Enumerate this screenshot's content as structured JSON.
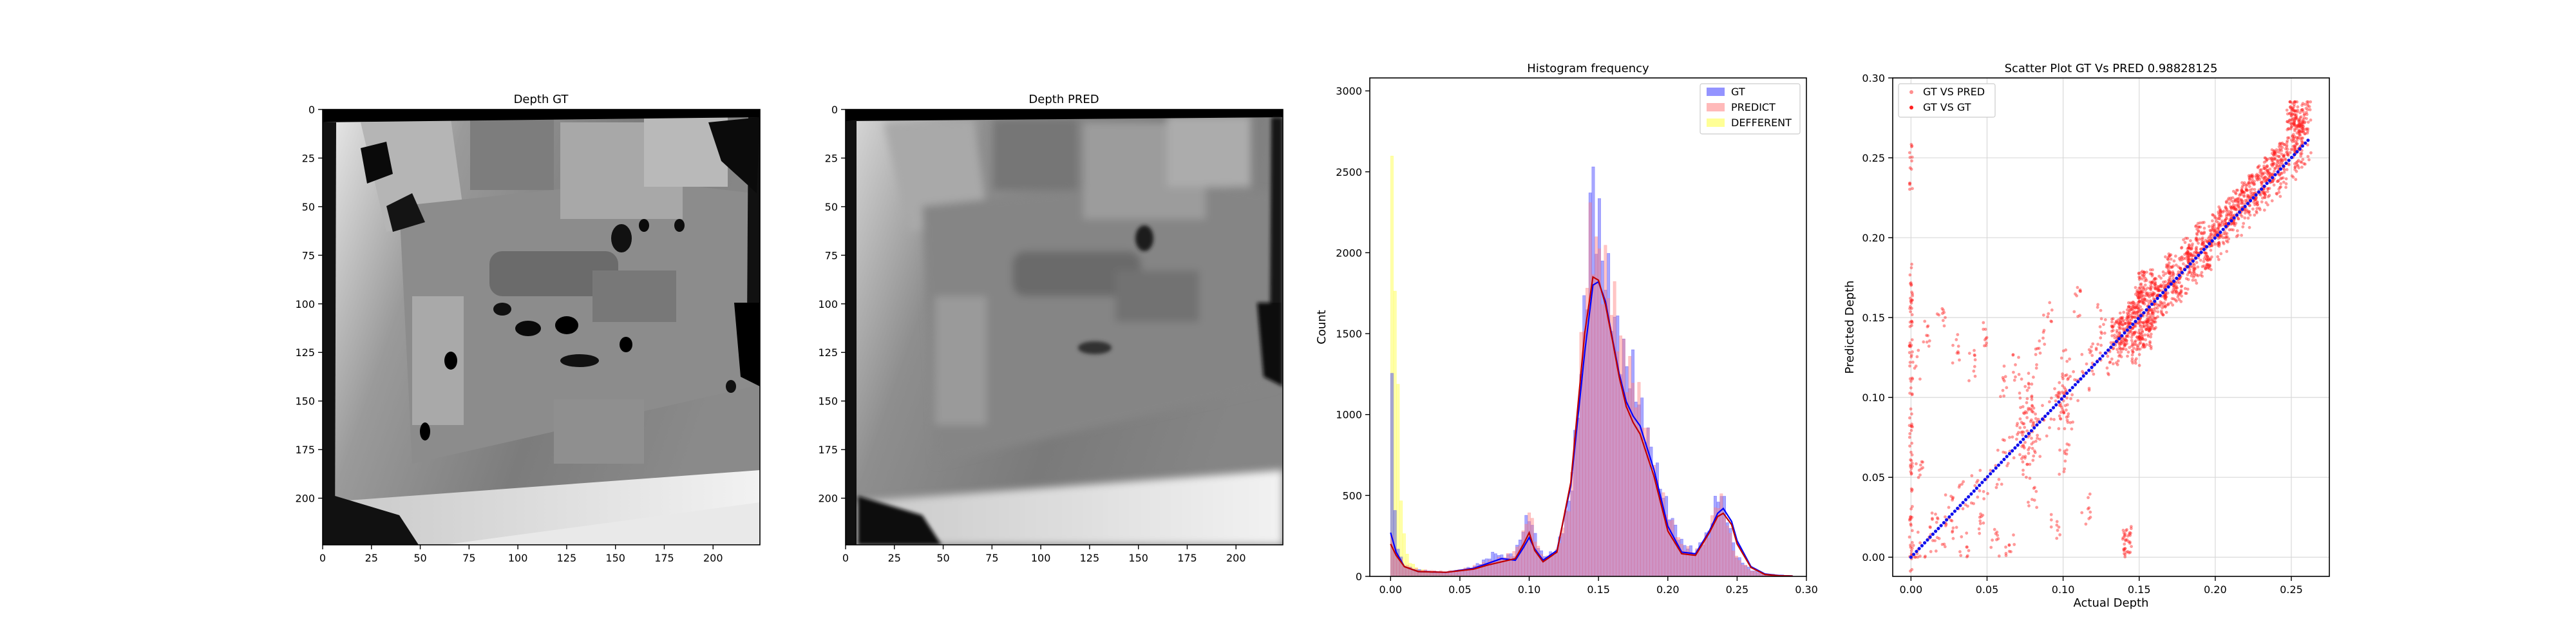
{
  "chart_data": [
    {
      "type": "heatmap",
      "title": "Depth GT",
      "x_ticks": [
        0,
        25,
        50,
        75,
        100,
        125,
        150,
        175,
        200
      ],
      "y_ticks": [
        0,
        25,
        50,
        75,
        100,
        125,
        150,
        175,
        200
      ],
      "xlim": [
        0,
        224
      ],
      "ylim": [
        224,
        0
      ],
      "colormap": "gray",
      "content": "depth map image"
    },
    {
      "type": "heatmap",
      "title": "Depth PRED",
      "x_ticks": [
        0,
        25,
        50,
        75,
        100,
        125,
        150,
        175,
        200
      ],
      "y_ticks": [
        0,
        25,
        50,
        75,
        100,
        125,
        150,
        175,
        200
      ],
      "xlim": [
        0,
        224
      ],
      "ylim": [
        224,
        0
      ],
      "colormap": "gray",
      "content": "depth map image"
    },
    {
      "type": "bar",
      "title": "Histogram frequency",
      "xlabel": "",
      "ylabel": "Count",
      "xlim": [
        -0.015,
        0.3
      ],
      "ylim": [
        0,
        3080
      ],
      "x_ticks": [
        0.0,
        0.05,
        0.1,
        0.15,
        0.2,
        0.25,
        0.3
      ],
      "y_ticks": [
        0,
        500,
        1000,
        1500,
        2000,
        2500,
        3000
      ],
      "legend_position": "top-right",
      "series": [
        {
          "name": "GT",
          "color": "#3b3bff",
          "x": [
            0.0,
            0.003,
            0.006,
            0.01,
            0.02,
            0.03,
            0.04,
            0.05,
            0.06,
            0.07,
            0.076,
            0.08,
            0.09,
            0.096,
            0.1,
            0.104,
            0.11,
            0.12,
            0.13,
            0.135,
            0.14,
            0.143,
            0.145,
            0.147,
            0.15,
            0.155,
            0.16,
            0.165,
            0.17,
            0.175,
            0.18,
            0.185,
            0.19,
            0.2,
            0.21,
            0.22,
            0.23,
            0.235,
            0.238,
            0.24,
            0.243,
            0.246,
            0.25,
            0.26,
            0.27,
            0.29
          ],
          "y": [
            1750,
            400,
            150,
            60,
            40,
            30,
            25,
            35,
            60,
            110,
            150,
            120,
            140,
            300,
            380,
            260,
            120,
            150,
            500,
            1000,
            1600,
            2000,
            2500,
            2350,
            2150,
            1900,
            1650,
            1450,
            1300,
            1250,
            1050,
            900,
            700,
            420,
            210,
            150,
            280,
            470,
            520,
            480,
            380,
            250,
            120,
            40,
            15,
            5
          ]
        },
        {
          "name": "PREDICT",
          "color": "#ff8080",
          "x": [
            0.0,
            0.003,
            0.006,
            0.01,
            0.02,
            0.03,
            0.04,
            0.05,
            0.06,
            0.07,
            0.08,
            0.09,
            0.096,
            0.1,
            0.104,
            0.11,
            0.12,
            0.13,
            0.135,
            0.14,
            0.143,
            0.145,
            0.147,
            0.15,
            0.155,
            0.16,
            0.165,
            0.17,
            0.175,
            0.18,
            0.185,
            0.19,
            0.2,
            0.21,
            0.22,
            0.23,
            0.235,
            0.238,
            0.24,
            0.243,
            0.246,
            0.25,
            0.26,
            0.27,
            0.29
          ],
          "y": [
            240,
            200,
            120,
            70,
            40,
            35,
            30,
            40,
            60,
            90,
            110,
            150,
            260,
            420,
            250,
            100,
            150,
            500,
            1050,
            1650,
            1950,
            2200,
            2050,
            1950,
            1850,
            1700,
            1500,
            1300,
            1200,
            1050,
            880,
            650,
            380,
            190,
            140,
            270,
            450,
            470,
            430,
            320,
            220,
            110,
            35,
            12,
            4
          ]
        },
        {
          "name": "DEFFERENT",
          "color": "#ffff40",
          "x": [
            0.0,
            0.002,
            0.004,
            0.006,
            0.008,
            0.01,
            0.012,
            0.015,
            0.02,
            0.03,
            0.04,
            0.06,
            0.1
          ],
          "y": [
            2900,
            2500,
            1550,
            900,
            450,
            250,
            130,
            80,
            45,
            20,
            10,
            5,
            2
          ]
        }
      ],
      "kde_curves": [
        {
          "name": "GT",
          "color": "#0000ff",
          "x": [
            0.0,
            0.004,
            0.01,
            0.02,
            0.04,
            0.06,
            0.07,
            0.08,
            0.09,
            0.096,
            0.1,
            0.104,
            0.11,
            0.12,
            0.13,
            0.14,
            0.146,
            0.15,
            0.155,
            0.16,
            0.165,
            0.17,
            0.175,
            0.18,
            0.19,
            0.2,
            0.21,
            0.22,
            0.23,
            0.236,
            0.24,
            0.246,
            0.25,
            0.26,
            0.27,
            0.28,
            0.29
          ],
          "y": [
            270,
            150,
            60,
            30,
            25,
            50,
            80,
            110,
            100,
            180,
            240,
            170,
            100,
            160,
            560,
            1380,
            1800,
            1820,
            1700,
            1470,
            1250,
            1080,
            990,
            930,
            660,
            310,
            150,
            140,
            280,
            390,
            420,
            340,
            220,
            60,
            15,
            5,
            2
          ]
        },
        {
          "name": "PREDICT",
          "color": "#c00000",
          "x": [
            0.0,
            0.004,
            0.01,
            0.02,
            0.04,
            0.06,
            0.07,
            0.08,
            0.09,
            0.096,
            0.1,
            0.104,
            0.11,
            0.12,
            0.13,
            0.14,
            0.146,
            0.15,
            0.155,
            0.16,
            0.165,
            0.17,
            0.175,
            0.18,
            0.19,
            0.2,
            0.21,
            0.22,
            0.23,
            0.236,
            0.24,
            0.246,
            0.25,
            0.26,
            0.27,
            0.28,
            0.29
          ],
          "y": [
            200,
            130,
            60,
            30,
            25,
            45,
            70,
            90,
            110,
            200,
            270,
            160,
            90,
            150,
            580,
            1500,
            1850,
            1830,
            1680,
            1460,
            1230,
            1050,
            950,
            880,
            620,
            280,
            140,
            130,
            270,
            370,
            390,
            320,
            200,
            55,
            12,
            4,
            2
          ]
        }
      ]
    },
    {
      "type": "scatter",
      "title": "Scatter Plot GT Vs PRED 0.98828125",
      "xlabel": "Actual Depth",
      "ylabel": "Predicted Depth",
      "xlim": [
        -0.012,
        0.275
      ],
      "ylim": [
        -0.012,
        0.3
      ],
      "x_ticks": [
        0.0,
        0.05,
        0.1,
        0.15,
        0.2,
        0.25
      ],
      "y_ticks": [
        0.0,
        0.05,
        0.1,
        0.15,
        0.2,
        0.25,
        0.3
      ],
      "grid": true,
      "legend_position": "top-left",
      "series": [
        {
          "name": "GT VS PRED",
          "color": "#ff2020",
          "marker": "point",
          "x": [
            0.0,
            0.0,
            0.0,
            0.0,
            0.0,
            0.0,
            0.0,
            0.0,
            0.003,
            0.005,
            0.01,
            0.015,
            0.02,
            0.025,
            0.03,
            0.035,
            0.04,
            0.045,
            0.05,
            0.055,
            0.06,
            0.065,
            0.07,
            0.072,
            0.074,
            0.076,
            0.078,
            0.08,
            0.08,
            0.082,
            0.085,
            0.09,
            0.095,
            0.098,
            0.1,
            0.1,
            0.102,
            0.104,
            0.11,
            0.115,
            0.12,
            0.125,
            0.13,
            0.135,
            0.14,
            0.142,
            0.145,
            0.148,
            0.15,
            0.152,
            0.155,
            0.158,
            0.16,
            0.165,
            0.17,
            0.175,
            0.18,
            0.185,
            0.19,
            0.195,
            0.2,
            0.205,
            0.21,
            0.215,
            0.22,
            0.225,
            0.23,
            0.235,
            0.24,
            0.245,
            0.25,
            0.252,
            0.255,
            0.258,
            0.26
          ],
          "y": [
            0.0,
            0.03,
            0.06,
            0.09,
            0.12,
            0.15,
            0.17,
            0.245,
            0.12,
            0.05,
            0.14,
            0.02,
            0.15,
            0.03,
            0.13,
            0.01,
            0.12,
            0.02,
            0.14,
            0.01,
            0.11,
            0.005,
            0.12,
            0.08,
            0.1,
            0.06,
            0.09,
            0.11,
            0.04,
            0.07,
            0.13,
            0.15,
            0.02,
            0.1,
            0.095,
            0.06,
            0.12,
            0.08,
            0.16,
            0.03,
            0.13,
            0.15,
            0.12,
            0.14,
            0.14,
            0.01,
            0.15,
            0.13,
            0.16,
            0.17,
            0.14,
            0.15,
            0.17,
            0.16,
            0.18,
            0.17,
            0.19,
            0.185,
            0.2,
            0.19,
            0.205,
            0.21,
            0.215,
            0.22,
            0.225,
            0.23,
            0.235,
            0.24,
            0.245,
            0.25,
            0.27,
            0.28,
            0.265,
            0.275,
            0.282
          ]
        },
        {
          "name": "GT VS GT",
          "color": "#1010ee",
          "marker": "point",
          "x": [
            0.0,
            0.05,
            0.1,
            0.15,
            0.2,
            0.25,
            0.26
          ],
          "y": [
            0.0,
            0.05,
            0.1,
            0.15,
            0.2,
            0.25,
            0.26
          ]
        }
      ]
    }
  ]
}
